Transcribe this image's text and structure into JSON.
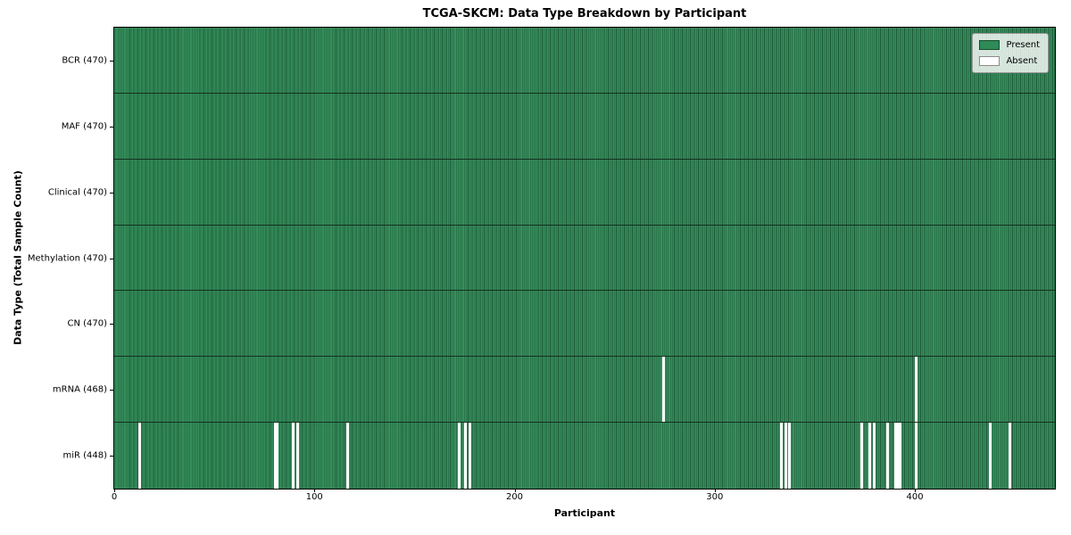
{
  "chart_data": {
    "type": "heatmap",
    "title": "TCGA-SKCM: Data Type Breakdown by Participant",
    "xlabel": "Participant",
    "ylabel": "Data Type (Total Sample Count)",
    "n_participants": 470,
    "x_ticks": [
      0,
      100,
      200,
      300,
      400
    ],
    "present_color": "#2e8b57",
    "absent_color": "#ffffff",
    "bar_edge_color": "#1d5737",
    "legend_position": "upper right",
    "legend_entries": [
      {
        "label": "Present",
        "color": "#2e8b57"
      },
      {
        "label": "Absent",
        "color": "#ffffff"
      }
    ],
    "rows": [
      {
        "label": "BCR",
        "total": 470,
        "absent_participants": []
      },
      {
        "label": "MAF",
        "total": 470,
        "absent_participants": []
      },
      {
        "label": "Clinical",
        "total": 470,
        "absent_participants": []
      },
      {
        "label": "Methylation",
        "total": 470,
        "absent_participants": []
      },
      {
        "label": "CN",
        "total": 470,
        "absent_participants": []
      },
      {
        "label": "mRNA",
        "total": 468,
        "absent_participants": [
          274,
          400
        ]
      },
      {
        "label": "miR",
        "total": 448,
        "absent_participants": [
          12,
          80,
          81,
          89,
          91,
          116,
          172,
          175,
          177,
          333,
          335,
          337,
          373,
          377,
          379,
          386,
          390,
          391,
          392,
          400,
          437,
          447
        ]
      }
    ]
  }
}
